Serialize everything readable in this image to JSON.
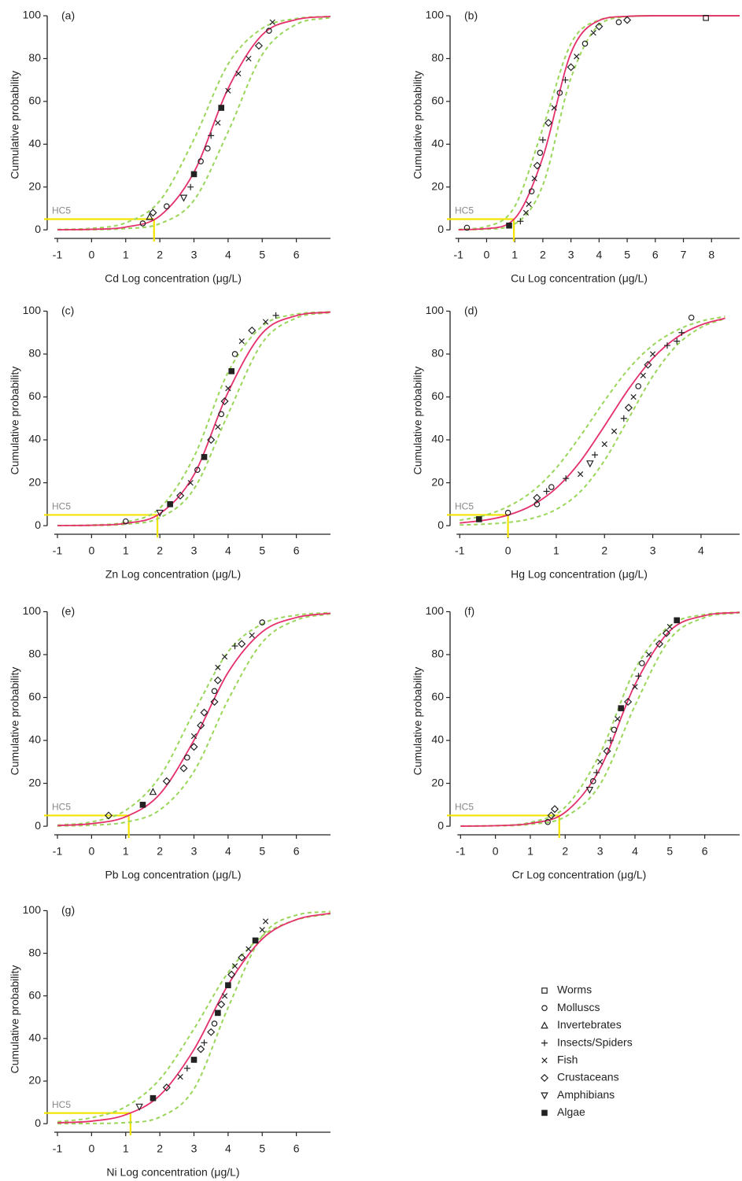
{
  "chart_data": [
    {
      "type": "line",
      "panel": "(a)",
      "xlabel": "Cd Log concentration (μg/L)",
      "ylabel": "Cumulative probability",
      "xlim": [
        -1.3,
        7
      ],
      "ylim": [
        -4,
        102
      ],
      "xticks": [
        -1,
        0,
        1,
        2,
        3,
        4,
        5,
        6
      ],
      "yticks": [
        0,
        20,
        40,
        60,
        80,
        100
      ],
      "x": [
        -1,
        0,
        1,
        2,
        3,
        4,
        5,
        6,
        7
      ],
      "series": [
        {
          "color": "#e5306a",
          "values": [
            0.05,
            0.25,
            1.3,
            6.5,
            26.9,
            66,
            91.1,
            98.2,
            99.7
          ]
        },
        {
          "color": "#9ad65a",
          "dashed": true,
          "values": [
            0.16,
            0.7,
            3.3,
            13.6,
            42.3,
            77.4,
            94.1,
            98.7,
            99.7
          ]
        },
        {
          "color": "#9ad65a",
          "dashed": true,
          "values": [
            0.02,
            0.1,
            0.6,
            2.9,
            13.8,
            45.8,
            81.8,
            96,
            99.2
          ]
        }
      ],
      "points": {
        "x": [
          1.5,
          1.7,
          1.8,
          2.2,
          2.7,
          2.9,
          3.0,
          3.2,
          3.4,
          3.5,
          3.7,
          3.8,
          4.0,
          4.3,
          4.6,
          4.9,
          5.2,
          5.3
        ],
        "y": [
          3,
          6,
          8,
          11,
          15,
          20,
          26,
          32,
          38,
          44,
          50,
          57,
          65,
          73,
          80,
          86,
          93,
          97
        ],
        "group": [
          1,
          2,
          5,
          1,
          6,
          3,
          7,
          1,
          1,
          3,
          4,
          7,
          4,
          4,
          4,
          5,
          1,
          4
        ]
      },
      "hc5": {
        "label": "HC5",
        "x": 1.83,
        "y": 5,
        "color": "#f2e400"
      }
    },
    {
      "type": "line",
      "panel": "(b)",
      "xlabel": "Cu Log concentration (μg/L)",
      "ylabel": "Cumulative probability",
      "xlim": [
        -1.3,
        9
      ],
      "ylim": [
        -4,
        102
      ],
      "xticks": [
        -1,
        0,
        1,
        2,
        3,
        4,
        5,
        6,
        7,
        8
      ],
      "yticks": [
        0,
        20,
        40,
        60,
        80,
        100
      ],
      "x": [
        -1,
        0,
        1,
        2,
        3,
        4,
        5,
        6,
        7,
        8,
        9
      ],
      "series": [
        {
          "color": "#e5306a",
          "values": [
            0.07,
            0.6,
            5.3,
            33.9,
            82.6,
            97.8,
            99.75,
            100,
            100,
            100,
            100
          ]
        },
        {
          "color": "#9ad65a",
          "dashed": true,
          "values": [
            0.2,
            1.6,
            10.9,
            47.5,
            87,
            98,
            99.7,
            100,
            100,
            100,
            100
          ]
        },
        {
          "color": "#9ad65a",
          "dashed": true,
          "values": [
            0.03,
            0.3,
            2.8,
            20.9,
            70.9,
            95.7,
            99.5,
            100,
            100,
            100,
            100
          ]
        }
      ],
      "points": {
        "x": [
          -0.7,
          0.8,
          1.2,
          1.4,
          1.5,
          1.6,
          1.7,
          1.8,
          1.9,
          2.0,
          2.2,
          2.4,
          2.6,
          2.8,
          3.0,
          3.2,
          3.5,
          3.8,
          4.0,
          4.7,
          5.0,
          7.8
        ],
        "y": [
          1,
          2,
          4,
          8,
          12,
          18,
          24,
          30,
          36,
          42,
          50,
          57,
          64,
          70,
          76,
          81,
          87,
          92,
          95,
          97,
          98,
          99
        ],
        "group": [
          1,
          7,
          3,
          4,
          4,
          1,
          4,
          5,
          1,
          3,
          5,
          4,
          1,
          3,
          5,
          4,
          1,
          4,
          5,
          1,
          5,
          0
        ]
      },
      "hc5": {
        "label": "HC5",
        "x": 0.97,
        "y": 5,
        "color": "#f2e400"
      }
    },
    {
      "type": "line",
      "panel": "(c)",
      "xlabel": "Zn Log concentration (μg/L)",
      "ylabel": "Cumulative probability",
      "xlim": [
        -1.3,
        7
      ],
      "ylim": [
        -4,
        102
      ],
      "xticks": [
        -1,
        0,
        1,
        2,
        3,
        4,
        5,
        6
      ],
      "yticks": [
        0,
        20,
        40,
        60,
        80,
        100
      ],
      "x": [
        -1,
        0,
        1,
        2,
        3,
        4,
        5,
        6,
        7
      ],
      "series": [
        {
          "color": "#e5306a",
          "values": [
            0.04,
            0.2,
            1.1,
            5.6,
            23.7,
            62.2,
            89.7,
            97.9,
            99.6
          ]
        },
        {
          "color": "#9ad65a",
          "dashed": true,
          "values": [
            0.06,
            0.3,
            1.7,
            8.2,
            32.1,
            71.5,
            93,
            98.6,
            99.7
          ]
        },
        {
          "color": "#9ad65a",
          "dashed": true,
          "values": [
            0.03,
            0.1,
            0.7,
            3.7,
            17.1,
            52,
            85.2,
            96.8,
            99.4
          ]
        }
      ],
      "points": {
        "x": [
          1.0,
          2.0,
          2.3,
          2.6,
          2.9,
          3.1,
          3.3,
          3.5,
          3.7,
          3.8,
          3.9,
          4.0,
          4.1,
          4.2,
          4.4,
          4.7,
          5.1,
          5.4
        ],
        "y": [
          2,
          6,
          10,
          14,
          20,
          26,
          32,
          40,
          46,
          52,
          58,
          64,
          72,
          80,
          86,
          91,
          95,
          98
        ],
        "group": [
          1,
          6,
          7,
          5,
          4,
          1,
          7,
          5,
          4,
          1,
          5,
          4,
          7,
          1,
          4,
          5,
          4,
          3
        ]
      },
      "hc5": {
        "label": "HC5",
        "x": 1.93,
        "y": 5,
        "color": "#f2e400"
      }
    },
    {
      "type": "line",
      "panel": "(d)",
      "xlabel": "Hg Log concentration (μg/L)",
      "ylabel": "Cumulative probability",
      "xlim": [
        -1.2,
        4.8
      ],
      "ylim": [
        -4,
        102
      ],
      "xticks": [
        -1,
        0,
        1,
        2,
        3,
        4
      ],
      "yticks": [
        0,
        20,
        40,
        60,
        80,
        100
      ],
      "x": [
        -1,
        -0.5,
        0,
        0.5,
        1,
        1.5,
        2,
        2.5,
        3,
        3.5,
        4,
        4.5
      ],
      "series": [
        {
          "color": "#e5306a",
          "values": [
            1.25,
            2.5,
            4.9,
            9.5,
            17.5,
            30,
            46.5,
            63.7,
            78,
            87.8,
            93.6,
            96.7
          ]
        },
        {
          "color": "#9ad65a",
          "dashed": true,
          "values": [
            2.5,
            4.7,
            8.9,
            15.9,
            26.9,
            41.8,
            58.2,
            73.1,
            84.1,
            91.1,
            95.3,
            97.5
          ]
        },
        {
          "color": "#9ad65a",
          "dashed": true,
          "values": [
            0.3,
            0.7,
            1.5,
            3.4,
            7.6,
            15.9,
            30.4,
            50,
            69.6,
            84.1,
            92.4,
            96.6
          ]
        }
      ],
      "points": {
        "x": [
          -0.6,
          0.0,
          0.6,
          0.6,
          0.8,
          0.9,
          1.2,
          1.5,
          1.7,
          1.8,
          2.0,
          2.2,
          2.4,
          2.5,
          2.6,
          2.7,
          2.8,
          2.9,
          3.0,
          3.3,
          3.5,
          3.6,
          3.8
        ],
        "y": [
          3,
          6,
          10,
          13,
          16,
          18,
          22,
          24,
          29,
          33,
          38,
          44,
          50,
          55,
          60,
          65,
          70,
          75,
          80,
          84,
          86,
          90,
          97
        ],
        "group": [
          7,
          1,
          1,
          5,
          3,
          1,
          3,
          4,
          6,
          3,
          4,
          4,
          3,
          5,
          4,
          1,
          4,
          5,
          4,
          3,
          3,
          3,
          1
        ]
      },
      "hc5": {
        "label": "HC5",
        "x": 0.0,
        "y": 5,
        "color": "#f2e400"
      }
    },
    {
      "type": "line",
      "panel": "(e)",
      "xlabel": "Pb Log concentration (μg/L)",
      "ylabel": "Cumulative probability",
      "xlim": [
        -1.3,
        7
      ],
      "ylim": [
        -4,
        102
      ],
      "xticks": [
        -1,
        0,
        1,
        2,
        3,
        4,
        5,
        6
      ],
      "yticks": [
        0,
        20,
        40,
        60,
        80,
        100
      ],
      "x": [
        -1,
        0,
        1,
        2,
        3,
        4,
        5,
        6,
        7
      ],
      "series": [
        {
          "color": "#e5306a",
          "values": [
            0.3,
            1.2,
            4.4,
            15,
            40.1,
            71.7,
            90.6,
            97.3,
            99.3
          ]
        },
        {
          "color": "#9ad65a",
          "dashed": true,
          "values": [
            0.5,
            2,
            7.4,
            23.1,
            53.2,
            81.3,
            94.3,
            98.4,
            99.6
          ]
        },
        {
          "color": "#9ad65a",
          "dashed": true,
          "values": [
            0.1,
            0.5,
            1.9,
            7.6,
            25.5,
            58.9,
            85.7,
            96.1,
            99
          ]
        }
      ],
      "points": {
        "x": [
          0.5,
          1.5,
          1.8,
          2.2,
          2.7,
          2.8,
          3.0,
          3.0,
          3.2,
          3.3,
          3.6,
          3.6,
          3.7,
          3.7,
          3.9,
          4.2,
          4.4,
          4.7,
          5.0
        ],
        "y": [
          5,
          10,
          16,
          21,
          27,
          32,
          37,
          42,
          47,
          53,
          58,
          63,
          68,
          74,
          79,
          84,
          85,
          89,
          95
        ],
        "group": [
          5,
          7,
          2,
          5,
          5,
          1,
          5,
          4,
          5,
          5,
          5,
          1,
          5,
          4,
          4,
          3,
          5,
          4,
          1
        ]
      },
      "hc5": {
        "label": "HC5",
        "x": 1.09,
        "y": 5,
        "color": "#f2e400"
      }
    },
    {
      "type": "line",
      "panel": "(f)",
      "xlabel": "Cr Log concentration (μg/L)",
      "ylabel": "Cumulative probability",
      "xlim": [
        -1.3,
        7
      ],
      "ylim": [
        -4,
        102
      ],
      "xticks": [
        -1,
        0,
        1,
        2,
        3,
        4,
        5,
        6
      ],
      "yticks": [
        0,
        20,
        40,
        60,
        80,
        100
      ],
      "x": [
        -1,
        0,
        1,
        2,
        3,
        4,
        5,
        6,
        7
      ],
      "series": [
        {
          "color": "#e5306a",
          "values": [
            0.05,
            0.25,
            1.3,
            6.5,
            26.9,
            66,
            91.1,
            98.2,
            99.7
          ]
        },
        {
          "color": "#9ad65a",
          "dashed": true,
          "values": [
            0.07,
            0.3,
            1.8,
            8.9,
            33.9,
            73.1,
            93.5,
            98.7,
            99.75
          ]
        },
        {
          "color": "#9ad65a",
          "dashed": true,
          "values": [
            0.03,
            0.16,
            0.9,
            4.4,
            19.5,
            56.2,
            87.2,
            97.3,
            99.5
          ]
        }
      ],
      "points": {
        "x": [
          1.5,
          1.6,
          1.7,
          2.7,
          2.8,
          2.9,
          3.0,
          3.2,
          3.3,
          3.4,
          3.5,
          3.6,
          3.8,
          4.0,
          4.1,
          4.2,
          4.4,
          4.7,
          4.9,
          5.0,
          5.2
        ],
        "y": [
          2,
          5,
          8,
          17,
          21,
          25,
          30,
          35,
          40,
          45,
          50,
          55,
          58,
          65,
          70,
          76,
          80,
          85,
          90,
          93,
          96
        ],
        "group": [
          1,
          5,
          5,
          6,
          1,
          3,
          4,
          5,
          3,
          1,
          4,
          7,
          5,
          4,
          3,
          1,
          4,
          5,
          5,
          4,
          7
        ]
      },
      "hc5": {
        "label": "HC5",
        "x": 1.83,
        "y": 5,
        "color": "#f2e400"
      }
    },
    {
      "type": "line",
      "panel": "(g)",
      "xlabel": "Ni Log concentration (μg/L)",
      "ylabel": "Cumulative probability",
      "xlim": [
        -1.3,
        7
      ],
      "ylim": [
        -4,
        102
      ],
      "xticks": [
        -1,
        0,
        1,
        2,
        3,
        4,
        5,
        6
      ],
      "yticks": [
        0,
        20,
        40,
        60,
        80,
        100
      ],
      "x": [
        -1,
        0,
        1,
        2,
        3,
        4,
        5,
        6,
        7
      ],
      "series": [
        {
          "color": "#e5306a",
          "values": [
            0.4,
            1.2,
            4.2,
            13.3,
            34.8,
            65.2,
            86.7,
            95.8,
            98.8
          ]
        },
        {
          "color": "#9ad65a",
          "dashed": true,
          "values": [
            0.9,
            2.8,
            8,
            20.9,
            44.5,
            70.9,
            88.1,
            95.7,
            98.5
          ]
        },
        {
          "color": "#9ad65a",
          "dashed": true,
          "values": [
            0,
            0.1,
            0.5,
            3.1,
            16.3,
            54.5,
            88.1,
            97.9,
            99.6
          ]
        }
      ],
      "points": {
        "x": [
          1.4,
          1.8,
          2.2,
          2.6,
          2.8,
          3.0,
          3.2,
          3.3,
          3.5,
          3.6,
          3.7,
          3.8,
          3.9,
          4.0,
          4.1,
          4.2,
          4.4,
          4.6,
          4.8,
          5.0,
          5.1
        ],
        "y": [
          8,
          12,
          17,
          22,
          26,
          30,
          35,
          38,
          43,
          47,
          52,
          56,
          60,
          65,
          70,
          74,
          78,
          82,
          86,
          91,
          95
        ],
        "group": [
          6,
          7,
          5,
          4,
          3,
          7,
          5,
          3,
          5,
          1,
          7,
          5,
          4,
          7,
          5,
          4,
          5,
          4,
          7,
          4,
          4
        ]
      },
      "hc5": {
        "label": "HC5",
        "x": 1.14,
        "y": 5,
        "color": "#f2e400"
      }
    }
  ],
  "legend": [
    {
      "name": "Worms",
      "marker": "square"
    },
    {
      "name": "Molluscs",
      "marker": "circle"
    },
    {
      "name": "Invertebrates",
      "marker": "triangle"
    },
    {
      "name": "Insects/Spiders",
      "marker": "plus"
    },
    {
      "name": "Fish",
      "marker": "cross"
    },
    {
      "name": "Crustaceans",
      "marker": "diamond"
    },
    {
      "name": "Amphibians",
      "marker": "triangle-down"
    },
    {
      "name": "Algae",
      "marker": "filled-square"
    }
  ]
}
